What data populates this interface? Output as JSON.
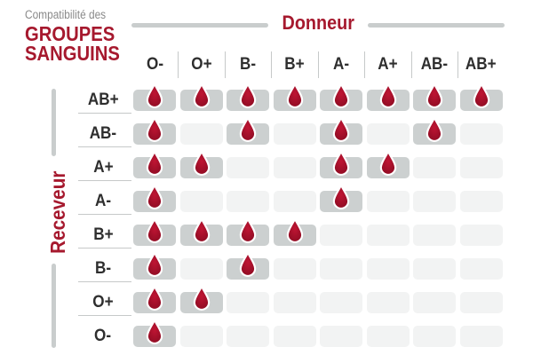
{
  "title": {
    "prefix": "Compatibilité des",
    "line1": "GROUPES",
    "line2": "SANGUINS"
  },
  "axes": {
    "donor": "Donneur",
    "recipient": "Receveur"
  },
  "chart_data": {
    "type": "heatmap",
    "title": "Compatibilité des groupes sanguins",
    "columns_axis_label": "Donneur",
    "rows_axis_label": "Receveur",
    "columns": [
      "O-",
      "O+",
      "B-",
      "B+",
      "A-",
      "A+",
      "AB-",
      "AB+"
    ],
    "rows": [
      "AB+",
      "AB-",
      "A+",
      "A-",
      "B+",
      "B-",
      "O+",
      "O-"
    ],
    "matrix": [
      [
        1,
        1,
        1,
        1,
        1,
        1,
        1,
        1
      ],
      [
        1,
        0,
        1,
        0,
        1,
        0,
        1,
        0
      ],
      [
        1,
        1,
        0,
        0,
        1,
        1,
        0,
        0
      ],
      [
        1,
        0,
        0,
        0,
        1,
        0,
        0,
        0
      ],
      [
        1,
        1,
        1,
        1,
        0,
        0,
        0,
        0
      ],
      [
        1,
        0,
        1,
        0,
        0,
        0,
        0,
        0
      ],
      [
        1,
        1,
        0,
        0,
        0,
        0,
        0,
        0
      ],
      [
        1,
        0,
        0,
        0,
        0,
        0,
        0,
        0
      ]
    ],
    "cell_icon": "blood-drop-icon"
  },
  "colors": {
    "accent_red": "#a6192e",
    "drop_red_light": "#bf1533",
    "drop_red_dark": "#8e0c23",
    "cell_filled_gray": "#ccd0d0",
    "cell_empty_gray": "#f2f3f3",
    "line_gray": "#c9cdcd",
    "label_dark": "#2e2e2e",
    "title_gray": "#8a8a8a"
  }
}
